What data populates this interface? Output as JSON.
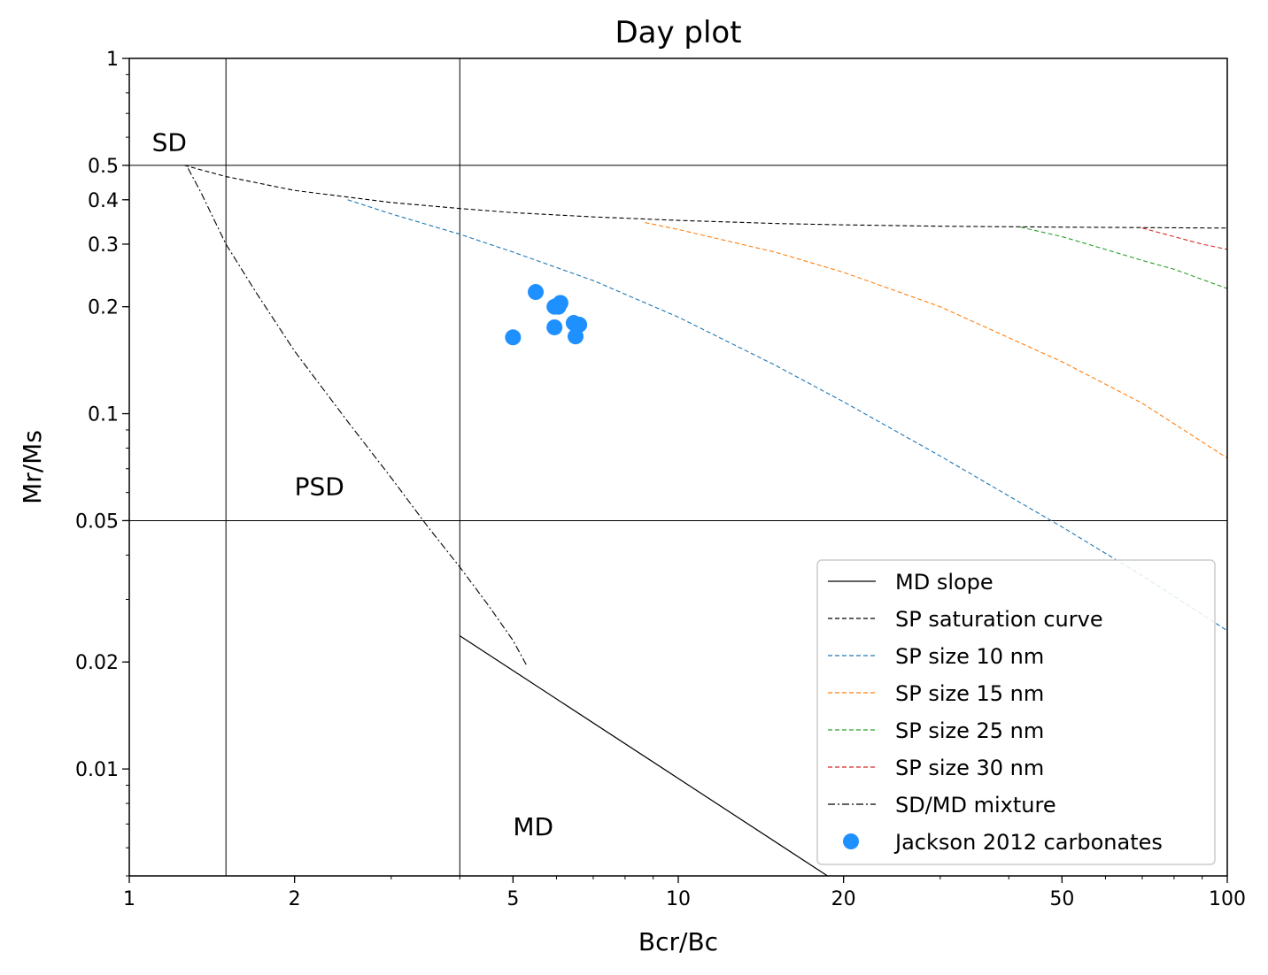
{
  "chart_data": {
    "type": "scatter",
    "title": "Day plot",
    "xlabel": "Bcr/Bc",
    "ylabel": "Mr/Ms",
    "xscale": "log",
    "yscale": "log",
    "xlim": [
      1,
      100
    ],
    "ylim": [
      0.005,
      1
    ],
    "x_ticks": [
      {
        "value": 1,
        "label": "1"
      },
      {
        "value": 2,
        "label": "2"
      },
      {
        "value": 5,
        "label": "5"
      },
      {
        "value": 10,
        "label": "10"
      },
      {
        "value": 20,
        "label": "20"
      },
      {
        "value": 50,
        "label": "50"
      },
      {
        "value": 100,
        "label": "100"
      }
    ],
    "y_ticks": [
      {
        "value": 1,
        "label": "1"
      },
      {
        "value": 0.5,
        "label": "0.5"
      },
      {
        "value": 0.4,
        "label": "0.4"
      },
      {
        "value": 0.3,
        "label": "0.3"
      },
      {
        "value": 0.2,
        "label": "0.2"
      },
      {
        "value": 0.1,
        "label": "0.1"
      },
      {
        "value": 0.05,
        "label": "0.05"
      },
      {
        "value": 0.02,
        "label": "0.02"
      },
      {
        "value": 0.01,
        "label": "0.01"
      }
    ],
    "grid": false,
    "legend_position": "bottom-right",
    "reference_lines": {
      "vertical": [
        1.5,
        4
      ],
      "horizontal": [
        0.5,
        0.05
      ]
    },
    "region_labels": [
      {
        "text": "SD",
        "x": 1.1,
        "y": 0.55
      },
      {
        "text": "PSD",
        "x": 2.0,
        "y": 0.059
      },
      {
        "text": "MD",
        "x": 5.0,
        "y": 0.0065
      }
    ],
    "series": [
      {
        "name": "MD slope",
        "kind": "line",
        "color": "#000000",
        "dash": "solid",
        "x": [
          4,
          18.7
        ],
        "y": [
          0.0237,
          0.005
        ]
      },
      {
        "name": "SP saturation curve",
        "kind": "line",
        "color": "#000000",
        "dash": "dashed",
        "x": [
          1.26,
          1.5,
          2,
          3,
          4,
          5,
          7,
          10,
          15,
          20,
          30,
          50,
          70,
          100
        ],
        "y": [
          0.5,
          0.465,
          0.425,
          0.393,
          0.378,
          0.368,
          0.358,
          0.35,
          0.343,
          0.34,
          0.337,
          0.335,
          0.334,
          0.333
        ]
      },
      {
        "name": "SP size 10 nm",
        "kind": "line",
        "color": "#1f77b4",
        "dash": "dashed",
        "x": [
          2.5,
          3,
          4,
          5,
          7,
          10,
          15,
          20,
          30,
          50,
          70,
          100
        ],
        "y": [
          0.4,
          0.365,
          0.32,
          0.285,
          0.237,
          0.187,
          0.137,
          0.108,
          0.076,
          0.048,
          0.035,
          0.0245
        ]
      },
      {
        "name": "SP size 15 nm",
        "kind": "line",
        "color": "#ff7f0e",
        "dash": "dashed",
        "x": [
          8.7,
          10,
          15,
          20,
          30,
          50,
          70,
          100
        ],
        "y": [
          0.345,
          0.33,
          0.285,
          0.25,
          0.2,
          0.14,
          0.107,
          0.075
        ]
      },
      {
        "name": "SP size 25 nm",
        "kind": "line",
        "color": "#2ca02c",
        "dash": "dashed",
        "x": [
          42,
          50,
          60,
          70,
          80,
          100
        ],
        "y": [
          0.335,
          0.315,
          0.29,
          0.27,
          0.255,
          0.225
        ]
      },
      {
        "name": "SP size 30 nm",
        "kind": "line",
        "color": "#d62728",
        "dash": "dashed",
        "x": [
          70,
          80,
          90,
          100
        ],
        "y": [
          0.333,
          0.315,
          0.3,
          0.29
        ]
      },
      {
        "name": "SD/MD mixture",
        "kind": "line",
        "color": "#000000",
        "dash": "dashdot",
        "x": [
          1.28,
          1.35,
          1.5,
          1.7,
          2,
          2.5,
          3,
          3.5,
          4,
          4.5,
          5,
          5.3
        ],
        "y": [
          0.49,
          0.42,
          0.3,
          0.22,
          0.15,
          0.095,
          0.066,
          0.048,
          0.037,
          0.029,
          0.023,
          0.0195
        ]
      },
      {
        "name": "Jackson 2012 carbonates",
        "kind": "scatter",
        "color": "#1e90ff",
        "x": [
          5.5,
          5.95,
          6.1,
          6.05,
          6.45,
          6.6,
          5.95,
          5.0,
          6.5
        ],
        "y": [
          0.22,
          0.2,
          0.205,
          0.2,
          0.18,
          0.178,
          0.175,
          0.164,
          0.165
        ]
      }
    ]
  }
}
